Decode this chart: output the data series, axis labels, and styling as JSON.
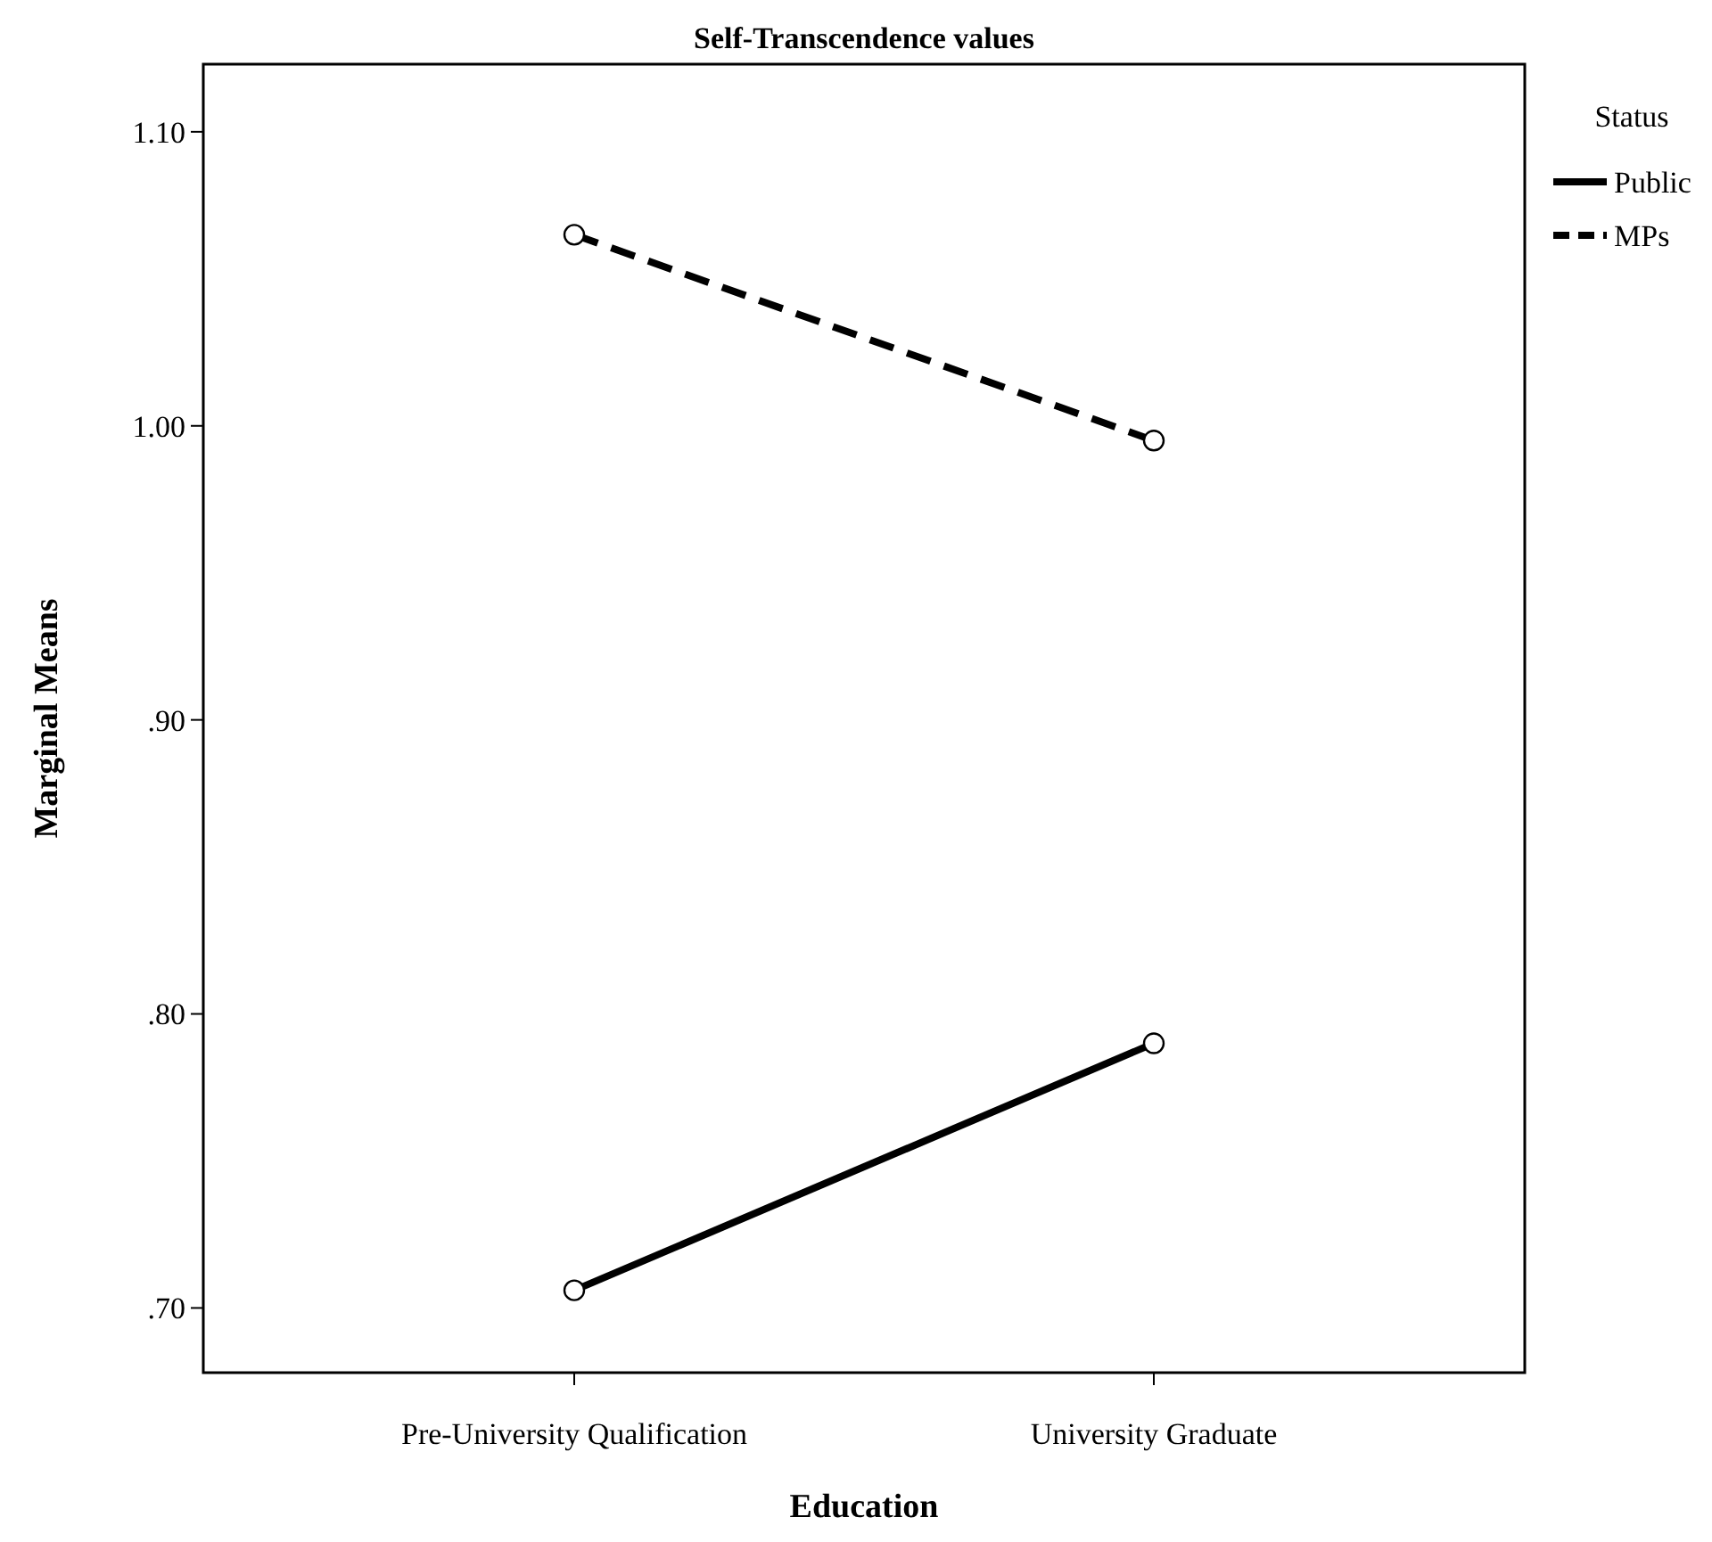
{
  "chart_data": {
    "type": "line",
    "title": "Self-Transcendence values",
    "xlabel": "Education",
    "ylabel": "Marginal Means",
    "legend_title": "Status",
    "categories": [
      "Pre-University Qualification",
      "University Graduate"
    ],
    "series": [
      {
        "name": "Public",
        "color": "#000000",
        "values": [
          0.706,
          0.79
        ],
        "line_style": "solid"
      },
      {
        "name": "MPs",
        "color": "#000000",
        "values": [
          1.065,
          0.995
        ],
        "line_style": "dashed"
      }
    ],
    "ylim": [
      0.678,
      1.123
    ],
    "yticks": [
      {
        "value": 0.7,
        "label": ".70"
      },
      {
        "value": 0.8,
        "label": ".80"
      },
      {
        "value": 0.9,
        "label": ".90"
      },
      {
        "value": 1.0,
        "label": "1.00"
      },
      {
        "value": 1.1,
        "label": "1.10"
      }
    ],
    "marker": "circle",
    "legend": "top right",
    "grid": false
  }
}
